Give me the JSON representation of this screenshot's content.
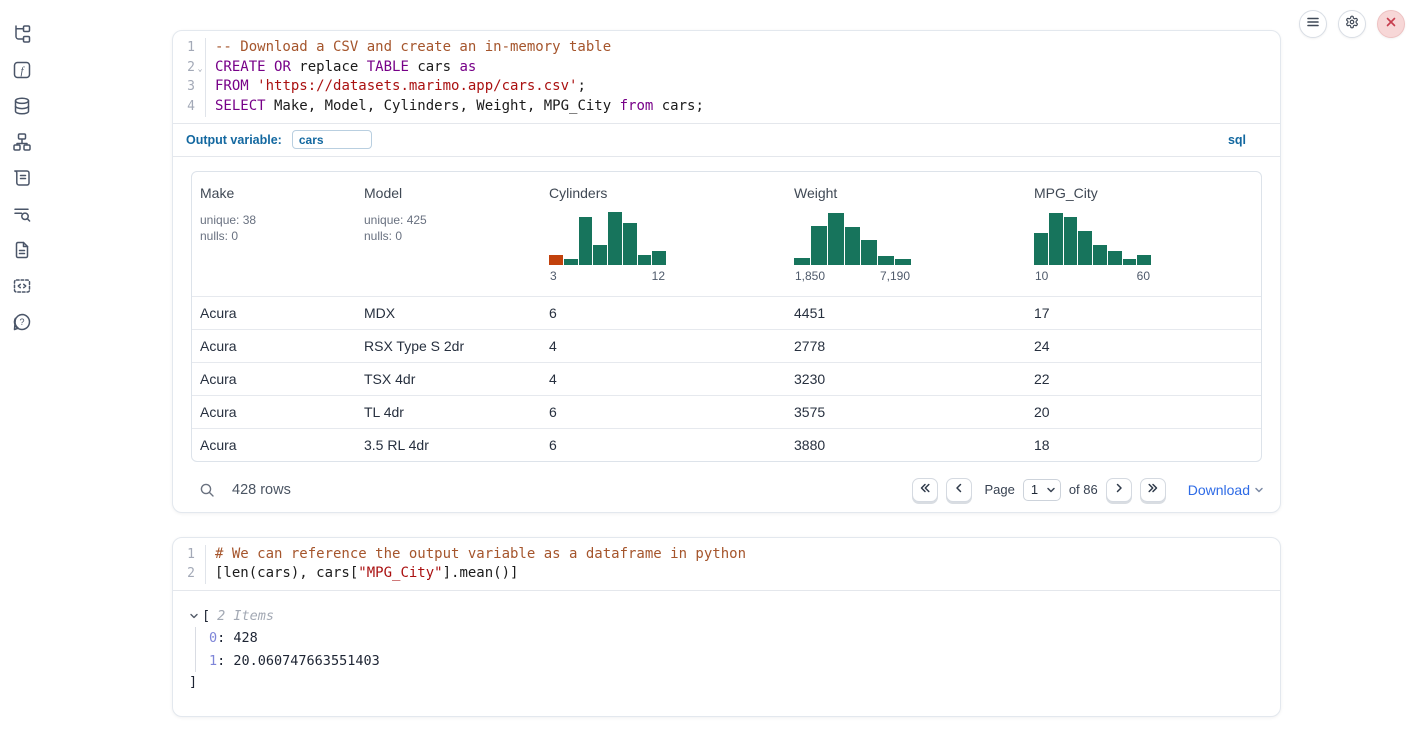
{
  "topbar": {
    "buttons": [
      {
        "name": "notebook-menu",
        "icon": "menu-icon"
      },
      {
        "name": "settings",
        "icon": "gear-icon"
      },
      {
        "name": "shutdown",
        "icon": "close-icon"
      }
    ]
  },
  "sidebar": {
    "items": [
      {
        "name": "file-explorer",
        "icon": "file-tree-icon"
      },
      {
        "name": "variables",
        "icon": "functions-icon"
      },
      {
        "name": "datasources",
        "icon": "database-icon"
      },
      {
        "name": "dependency-graph",
        "icon": "dependency-graph-icon"
      },
      {
        "name": "scratchpad",
        "icon": "scroll-icon"
      },
      {
        "name": "logs",
        "icon": "logs-search-icon"
      },
      {
        "name": "documentation",
        "icon": "document-icon"
      },
      {
        "name": "snippets",
        "icon": "snippets-icon"
      },
      {
        "name": "help",
        "icon": "help-bubble-icon"
      }
    ]
  },
  "cell1": {
    "language_badge": "sql",
    "code": {
      "lines": [
        {
          "num": "1",
          "fold": false,
          "tokens": [
            {
              "text": "-- Download a CSV and create an in-memory table",
              "type": "c"
            }
          ]
        },
        {
          "num": "2",
          "fold": true,
          "tokens": [
            {
              "text": "CREATE",
              "type": "k"
            },
            {
              "text": " ",
              "type": "p"
            },
            {
              "text": "OR",
              "type": "k"
            },
            {
              "text": " replace ",
              "type": "p"
            },
            {
              "text": "TABLE",
              "type": "k"
            },
            {
              "text": " cars ",
              "type": "p"
            },
            {
              "text": "as",
              "type": "k"
            }
          ]
        },
        {
          "num": "3",
          "fold": false,
          "tokens": [
            {
              "text": "FROM",
              "type": "k"
            },
            {
              "text": " ",
              "type": "p"
            },
            {
              "text": "'https://datasets.marimo.app/cars.csv'",
              "type": "s"
            },
            {
              "text": ";",
              "type": "p"
            }
          ]
        },
        {
          "num": "4",
          "fold": false,
          "tokens": [
            {
              "text": "SELECT",
              "type": "k"
            },
            {
              "text": " Make, Model, Cylinders, Weight, MPG_City ",
              "type": "p"
            },
            {
              "text": "from",
              "type": "k"
            },
            {
              "text": " cars;",
              "type": "p"
            }
          ]
        }
      ]
    },
    "output_variable": {
      "label": "Output variable:",
      "value": "cars"
    },
    "table": {
      "columns": [
        {
          "name": "Make",
          "stats": [
            "unique: 38",
            "nulls: 0"
          ]
        },
        {
          "name": "Model",
          "stats": [
            "unique: 425",
            "nulls: 0"
          ]
        },
        {
          "name": "Cylinders",
          "histogram": {
            "type": "bar",
            "values": [
              17,
              10,
              85,
              35,
              95,
              75,
              17,
              25
            ],
            "highlight_first": true,
            "axis_labels": [
              "3",
              "12"
            ]
          }
        },
        {
          "name": "Weight",
          "histogram": {
            "type": "bar",
            "values": [
              12,
              70,
              93,
              67,
              45,
              16,
              11
            ],
            "highlight_first": false,
            "axis_labels": [
              "1,850",
              "7,190"
            ]
          }
        },
        {
          "name": "MPG_City",
          "histogram": {
            "type": "bar",
            "values": [
              57,
              93,
              86,
              60,
              36,
              25,
              10,
              18
            ],
            "highlight_first": false,
            "axis_labels": [
              "10",
              "60"
            ]
          }
        }
      ],
      "rows": [
        [
          "Acura",
          "MDX",
          "6",
          "4451",
          "17"
        ],
        [
          "Acura",
          "RSX Type S 2dr",
          "4",
          "2778",
          "24"
        ],
        [
          "Acura",
          "TSX 4dr",
          "4",
          "3230",
          "22"
        ],
        [
          "Acura",
          "TL 4dr",
          "6",
          "3575",
          "20"
        ],
        [
          "Acura",
          "3.5 RL 4dr",
          "6",
          "3880",
          "18"
        ]
      ]
    },
    "footer": {
      "rows_label": "428 rows",
      "page_label": "Page",
      "page_value": "1",
      "of_label": "of 86",
      "download_label": "Download"
    }
  },
  "cell2": {
    "code": {
      "lines": [
        {
          "num": "1",
          "fold": false,
          "tokens": [
            {
              "text": "# We can reference the output variable as a dataframe in python",
              "type": "c"
            }
          ]
        },
        {
          "num": "2",
          "fold": false,
          "tokens": [
            {
              "text": "[len(cars), cars[",
              "type": "p"
            },
            {
              "text": "\"MPG_City\"",
              "type": "s"
            },
            {
              "text": "].mean()]",
              "type": "p"
            }
          ]
        }
      ]
    },
    "output": {
      "bracket_open": "[",
      "items_label": "2 Items",
      "entries": [
        {
          "index": "0",
          "value": "428"
        },
        {
          "index": "1",
          "value": "20.060747663551403"
        }
      ],
      "bracket_close": "]"
    }
  },
  "colors": {
    "accent_blue": "#1368a0",
    "link_blue": "#2e6be6",
    "histogram_green": "#17745c",
    "histogram_orange": "#c2410c",
    "keyword": "#770088",
    "comment": "#a5552c",
    "string": "#aa1111"
  }
}
